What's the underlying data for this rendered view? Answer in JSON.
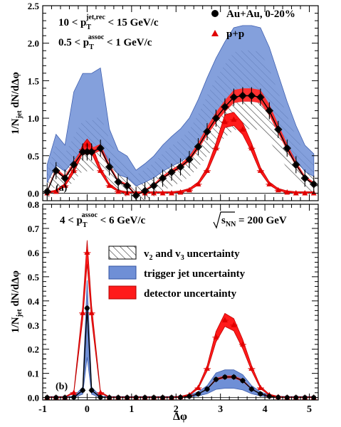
{
  "chart_data": [
    {
      "panel_label": "(a)",
      "type": "line",
      "ylabel": "1/N_jet dN/dΔφ",
      "xlabel": "",
      "xlim": [
        -1,
        5.2
      ],
      "ylim": [
        -0.1,
        2.5
      ],
      "x_ticks": [
        "-1",
        "0",
        "1",
        "2",
        "3",
        "4",
        "5"
      ],
      "y_ticks": [
        "0.0",
        "0.5",
        "1.0",
        "1.5",
        "2.0",
        "2.5"
      ],
      "grid": false,
      "cuts": [
        {
          "main": "10 < p",
          "sub": "T",
          "sup": "jet,rec",
          "tail": " < 15 GeV/c"
        },
        {
          "main": "0.5 < p",
          "sub": "T",
          "sup": "assoc",
          "tail": " < 1 GeV/c"
        }
      ],
      "legend": [
        {
          "label": "Au+Au, 0-20%",
          "marker": "circle",
          "color": "#000000"
        },
        {
          "label": "p+p",
          "marker": "triangle",
          "color": "#e00000"
        }
      ],
      "series": [
        {
          "name": "Au+Au, 0-20%",
          "x": [
            -0.9,
            -0.7,
            -0.5,
            -0.3,
            -0.1,
            0.0,
            0.1,
            0.3,
            0.5,
            0.7,
            0.9,
            1.1,
            1.3,
            1.5,
            1.7,
            1.9,
            2.1,
            2.3,
            2.5,
            2.7,
            2.9,
            3.1,
            3.3,
            3.5,
            3.7,
            3.9,
            4.1,
            4.3,
            4.5,
            4.7,
            4.9,
            5.1
          ],
          "values": [
            0.02,
            0.3,
            0.2,
            0.38,
            0.55,
            0.55,
            0.55,
            0.6,
            0.35,
            0.15,
            0.1,
            -0.03,
            0.03,
            0.1,
            0.2,
            0.28,
            0.35,
            0.45,
            0.62,
            0.82,
            1.0,
            1.15,
            1.28,
            1.3,
            1.3,
            1.28,
            1.1,
            0.85,
            0.6,
            0.38,
            0.2,
            0.12
          ]
        },
        {
          "name": "p+p",
          "x": [
            -0.9,
            -0.7,
            -0.5,
            -0.3,
            -0.1,
            0.0,
            0.1,
            0.3,
            0.5,
            0.7,
            0.9,
            1.1,
            1.3,
            1.5,
            1.7,
            1.9,
            2.1,
            2.3,
            2.5,
            2.7,
            2.9,
            3.1,
            3.3,
            3.5,
            3.7,
            3.9,
            4.1,
            4.3,
            4.5,
            4.7,
            4.9,
            5.1
          ],
          "values": [
            0.0,
            0.02,
            0.1,
            0.3,
            0.58,
            0.65,
            0.58,
            0.3,
            0.1,
            0.02,
            0.0,
            0.0,
            0.0,
            0.0,
            0.0,
            0.0,
            0.01,
            0.04,
            0.12,
            0.3,
            0.6,
            0.95,
            0.98,
            0.85,
            0.6,
            0.3,
            0.12,
            0.04,
            0.01,
            0.0,
            0.0,
            0.0
          ]
        }
      ]
    },
    {
      "panel_label": "(b)",
      "type": "line",
      "ylabel": "1/N_jet dN/dΔφ",
      "xlabel": "Δφ",
      "xlim": [
        -1,
        5.2
      ],
      "ylim": [
        -0.01,
        0.8
      ],
      "x_ticks": [
        "-1",
        "0",
        "1",
        "2",
        "3",
        "4",
        "5"
      ],
      "y_ticks": [
        "0.0",
        "0.1",
        "0.2",
        "0.3",
        "0.4",
        "0.5",
        "0.6",
        "0.7",
        "0.8"
      ],
      "grid": false,
      "cut": {
        "main": "4 < p",
        "sub": "T",
        "sup": "assoc",
        "tail": " < 6 GeV/c"
      },
      "energy": {
        "pre": "s",
        "sub": "NN",
        "tail": " = 200 GeV"
      },
      "legend": [
        {
          "label_main": "v",
          "label_parts": [
            "2",
            " and v",
            "3",
            " uncertainty"
          ],
          "style": "hatch"
        },
        {
          "label": "trigger jet uncertainty",
          "style": "fill",
          "color": "#6f8fd6"
        },
        {
          "label": "detector uncertainty",
          "style": "fill",
          "color": "#ff1a1a"
        }
      ],
      "series": [
        {
          "name": "Au+Au, 0-20%",
          "x": [
            -0.9,
            -0.7,
            -0.5,
            -0.3,
            -0.1,
            0.0,
            0.1,
            0.3,
            0.5,
            0.7,
            0.9,
            1.1,
            1.3,
            1.5,
            1.7,
            1.9,
            2.1,
            2.3,
            2.5,
            2.7,
            2.9,
            3.1,
            3.3,
            3.5,
            3.7,
            3.9,
            4.1,
            4.3,
            4.5,
            4.7,
            4.9,
            5.1
          ],
          "values": [
            0.0,
            0.0,
            0.0,
            0.001,
            0.03,
            0.37,
            0.03,
            0.001,
            0.0,
            0.0,
            0.0,
            0.0,
            0.0,
            0.0,
            0.0,
            0.0,
            0.001,
            0.005,
            0.015,
            0.035,
            0.075,
            0.085,
            0.085,
            0.07,
            0.035,
            0.015,
            0.005,
            0.001,
            0.0,
            0.0,
            0.0,
            0.0
          ]
        },
        {
          "name": "p+p",
          "x": [
            -0.9,
            -0.7,
            -0.5,
            -0.3,
            -0.1,
            0.0,
            0.1,
            0.3,
            0.5,
            0.7,
            0.9,
            1.1,
            1.3,
            1.5,
            1.7,
            1.9,
            2.1,
            2.3,
            2.5,
            2.7,
            2.9,
            3.1,
            3.3,
            3.5,
            3.7,
            3.9,
            4.1,
            4.3,
            4.5,
            4.7,
            4.9,
            5.1
          ],
          "values": [
            0.0,
            0.0,
            0.0,
            0.02,
            0.35,
            0.6,
            0.35,
            0.02,
            0.0,
            0.0,
            0.0,
            0.0,
            0.0,
            0.0,
            0.0,
            0.0,
            0.002,
            0.01,
            0.04,
            0.12,
            0.25,
            0.32,
            0.3,
            0.22,
            0.12,
            0.04,
            0.01,
            0.002,
            0.0,
            0.0,
            0.0,
            0.0
          ]
        }
      ]
    }
  ]
}
